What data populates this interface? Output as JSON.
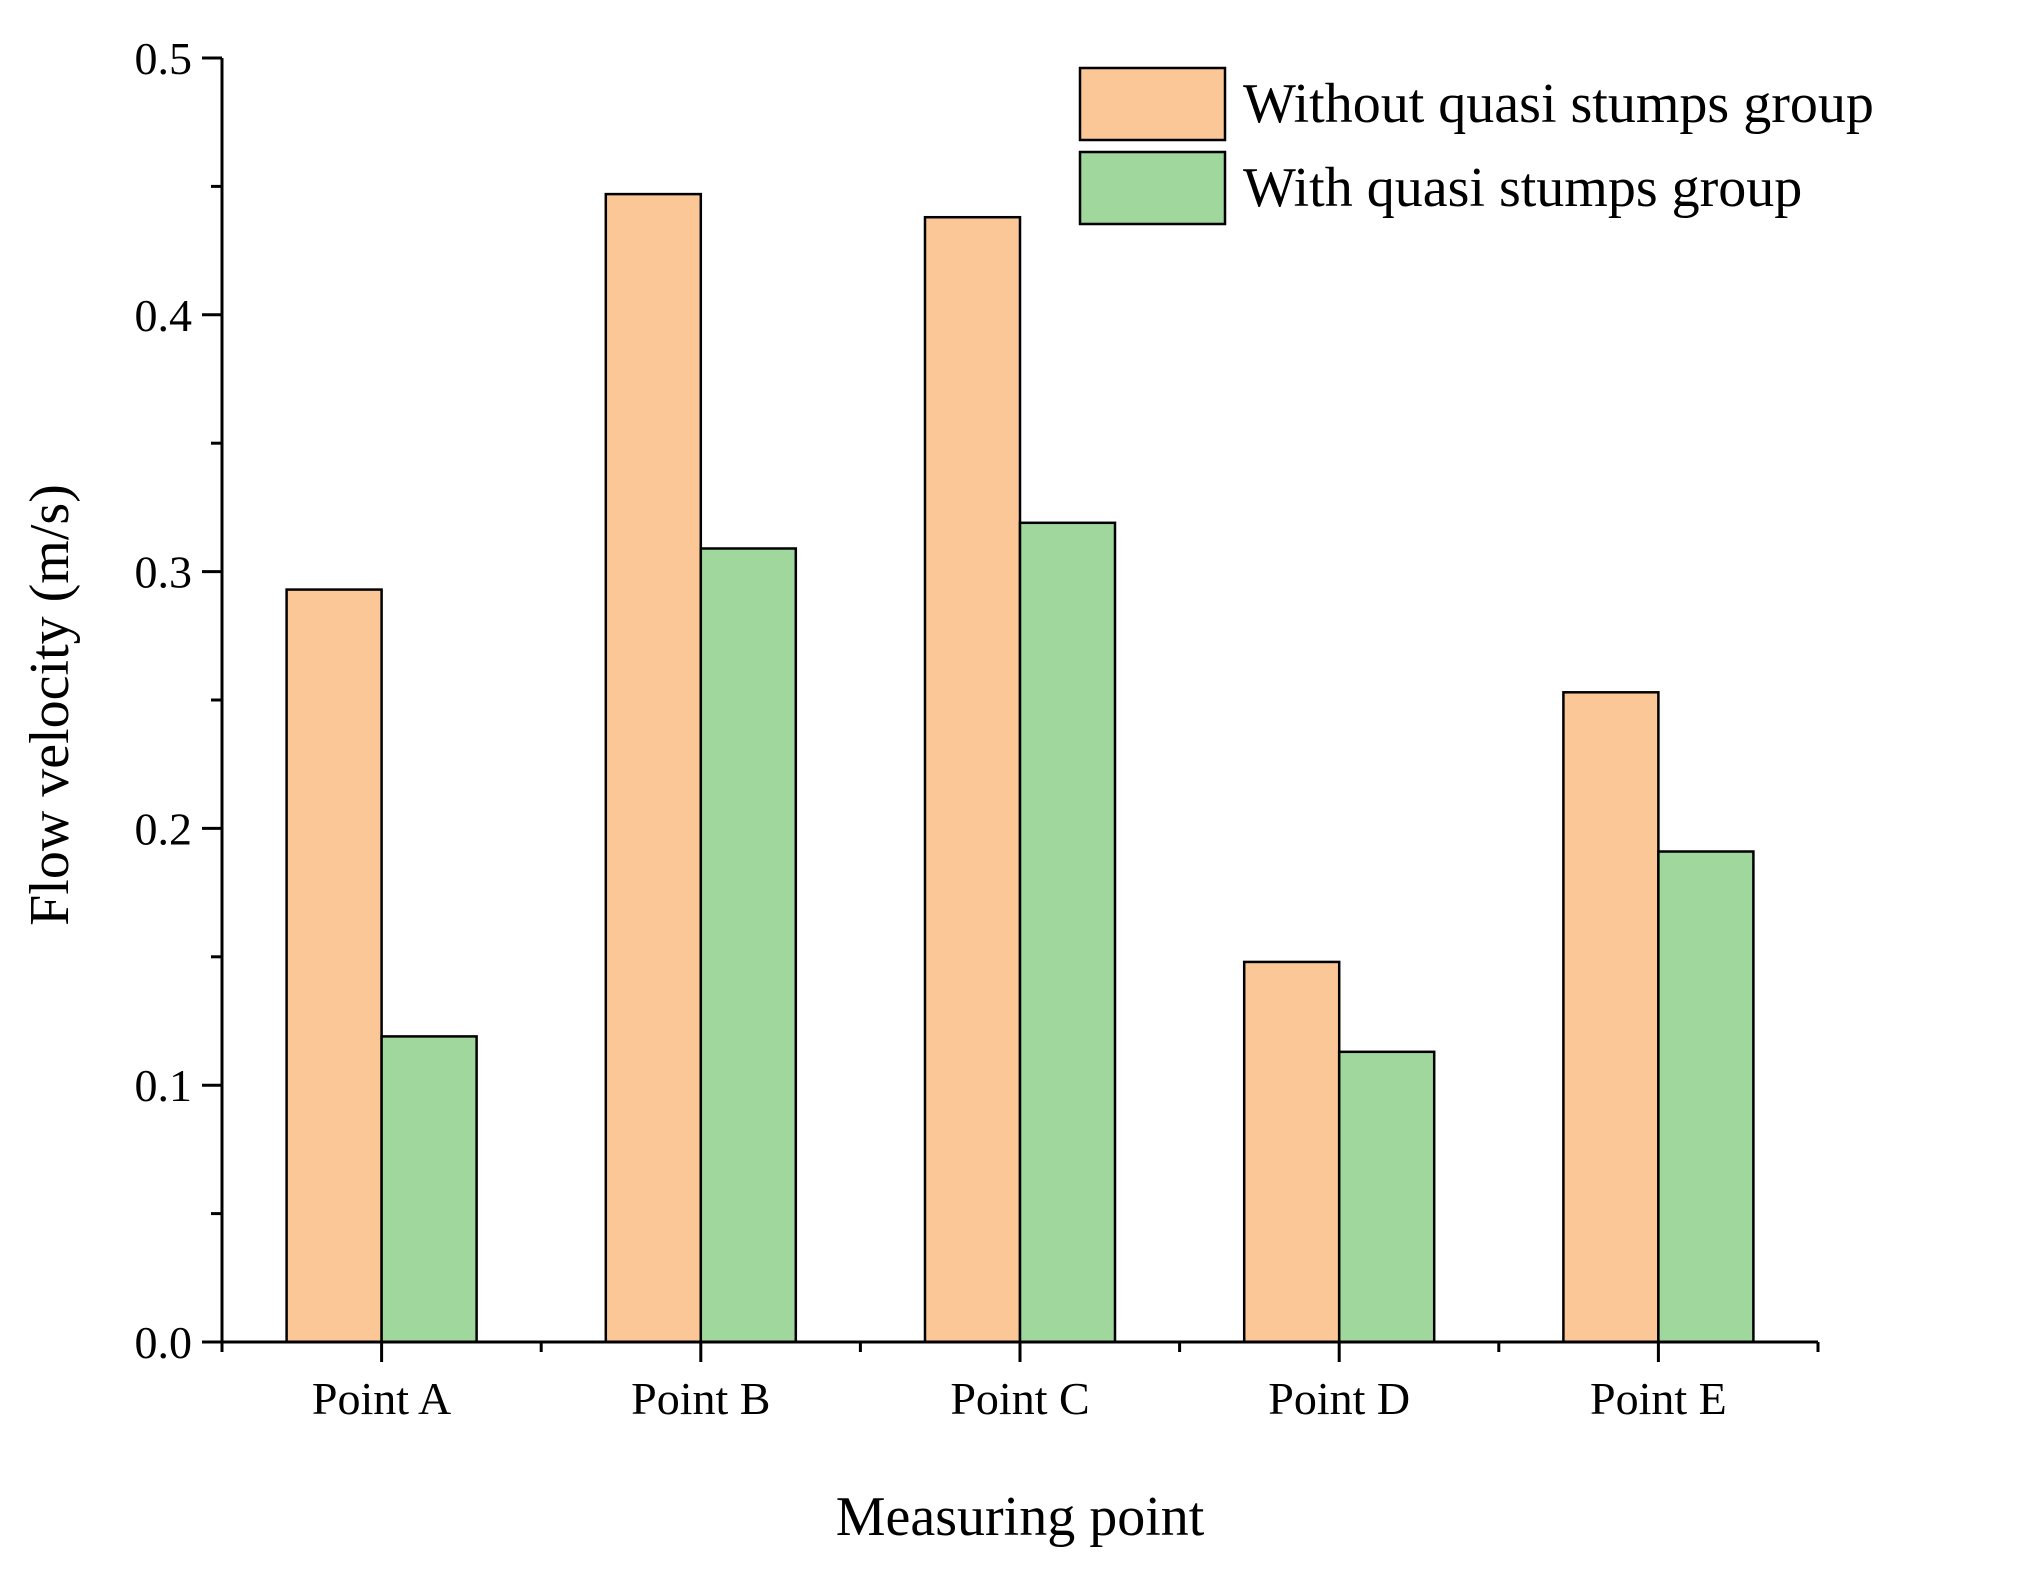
{
  "chart_data": {
    "type": "bar",
    "title": "",
    "xlabel": "Measuring point",
    "ylabel": "Flow velocity (m/s)",
    "categories": [
      "Point A",
      "Point B",
      "Point C",
      "Point D",
      "Point E"
    ],
    "series": [
      {
        "name": "Without quasi stumps group",
        "color": "#FBC797",
        "values": [
          0.293,
          0.447,
          0.438,
          0.148,
          0.253
        ]
      },
      {
        "name": "With quasi stumps group",
        "color": "#9FD79C",
        "values": [
          0.119,
          0.309,
          0.319,
          0.113,
          0.191
        ]
      }
    ],
    "ylim": [
      0,
      0.5
    ],
    "yticks": [
      "0.0",
      "0.1",
      "0.2",
      "0.3",
      "0.4",
      "0.5"
    ],
    "grid": false,
    "legend_position": "top-right"
  }
}
